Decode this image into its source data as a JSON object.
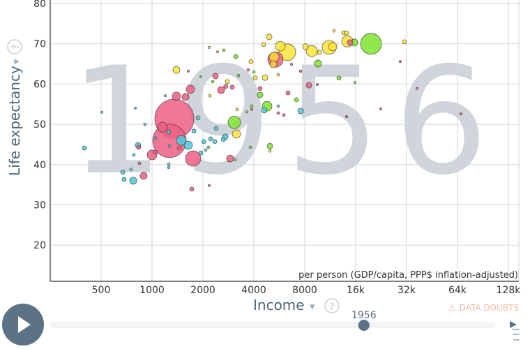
{
  "chart_data": {
    "type": "scatter",
    "year": "1956",
    "xlabel": "Income",
    "xlabel_sub": "per person (GDP/capita, PPP$ inflation-adjusted)",
    "ylabel": "Life expectancy",
    "x_scale": "log2",
    "xlim": [
      250,
      160000
    ],
    "ylim": [
      11,
      80
    ],
    "x_ticks": [
      500,
      1000,
      2000,
      4000,
      8000,
      16000,
      32000,
      64000,
      128000
    ],
    "x_tick_labels": [
      "500",
      "1000",
      "2000",
      "4000",
      "8000",
      "16k",
      "32k",
      "64k",
      "128k"
    ],
    "y_ticks": [
      20,
      30,
      40,
      50,
      60,
      70,
      80
    ],
    "y_tick_labels": [
      "20",
      "30",
      "40",
      "50",
      "60",
      "70",
      "80"
    ],
    "grid": true,
    "bubble_fields": [
      "income",
      "life_expectancy",
      "population_relative",
      "color"
    ],
    "bubbles": [
      [
        1355,
        51.4,
        620,
        "#ef5f84"
      ],
      [
        1268,
        45.9,
        455,
        "#ef5f84"
      ],
      [
        1153,
        49.3,
        39,
        "#ef5f84"
      ],
      [
        1490,
        46.0,
        39,
        "#4cc9dd"
      ],
      [
        1638,
        44.8,
        28,
        "#4cc9dd"
      ],
      [
        1750,
        41.5,
        95,
        "#ef5f84"
      ],
      [
        1000,
        42.4,
        39,
        "#ef5f84"
      ],
      [
        2896,
        41.5,
        20,
        "#ef5f84"
      ],
      [
        3066,
        50.5,
        64,
        "#7fe32f"
      ],
      [
        3155,
        47.6,
        28,
        "#ffe43a"
      ],
      [
        4790,
        54.5,
        39,
        "#7fe32f"
      ],
      [
        4610,
        53.5,
        13,
        "#4cc9dd"
      ],
      [
        7560,
        53.3,
        13,
        "#4cc9dd"
      ],
      [
        2560,
        58.5,
        20,
        "#ef5f84"
      ],
      [
        2374,
        62.0,
        13,
        "#ef5f84"
      ],
      [
        1686,
        58.7,
        28,
        "#ef5f84"
      ],
      [
        1394,
        57.0,
        28,
        "#ef5f84"
      ],
      [
        1578,
        56.8,
        20,
        "#ef5f84"
      ],
      [
        1394,
        63.5,
        20,
        "#ffe43a"
      ],
      [
        5370,
        66.1,
        95,
        "#ef5f84"
      ],
      [
        6310,
        67.9,
        114,
        "#ffe43a"
      ],
      [
        5740,
        69.4,
        39,
        "#ffe43a"
      ],
      [
        5270,
        66.7,
        39,
        "#ffd23a"
      ],
      [
        5220,
        64.9,
        20,
        "#ffd23a"
      ],
      [
        8800,
        68.2,
        51,
        "#ffe43a"
      ],
      [
        11150,
        69.1,
        79,
        "#ffe43a"
      ],
      [
        11700,
        69.3,
        28,
        "#ffe43a"
      ],
      [
        14280,
        70.6,
        51,
        "#ffe43a"
      ],
      [
        15700,
        70.3,
        20,
        "#7fe32f"
      ],
      [
        14830,
        70.3,
        13,
        "#ef5f84"
      ],
      [
        19720,
        70.0,
        178,
        "#7fe32f"
      ],
      [
        8080,
        69.3,
        13,
        "#ffe43a"
      ],
      [
        9770,
        67.9,
        7,
        "#ffe43a"
      ],
      [
        4930,
        71.7,
        13,
        "#ffe43a"
      ],
      [
        4570,
        69.8,
        7,
        "#ffe43a"
      ],
      [
        11920,
        73.2,
        3,
        "#ffe43a"
      ],
      [
        13610,
        72.7,
        7,
        "#ffe43a"
      ],
      [
        14140,
        72.7,
        7,
        "#ffe43a"
      ],
      [
        31100,
        70.5,
        7,
        "#ffe43a"
      ],
      [
        9580,
        65.1,
        20,
        "#7fe32f"
      ],
      [
        12740,
        61.5,
        7,
        "#7fe32f"
      ],
      [
        3125,
        66.8,
        7,
        "#7fe32f"
      ],
      [
        3850,
        65.6,
        7,
        "#ffe43a"
      ],
      [
        4657,
        61.6,
        13,
        "#ffe43a"
      ],
      [
        4076,
        61.5,
        7,
        "#ffe43a"
      ],
      [
        8470,
        59.7,
        13,
        "#ef5f84"
      ],
      [
        6370,
        57.8,
        7,
        "#ef5f84"
      ],
      [
        7140,
        56.1,
        7,
        "#7fe32f"
      ],
      [
        4357,
        57.3,
        13,
        "#7fe32f"
      ],
      [
        4357,
        58.9,
        7,
        "#ef5f84"
      ],
      [
        2788,
        60.6,
        7,
        "#ffe43a"
      ],
      [
        2730,
        59.4,
        7,
        "#ef5f84"
      ],
      [
        2980,
        59.2,
        7,
        "#ef5f84"
      ],
      [
        2395,
        49.0,
        7,
        "#4cc9dd"
      ],
      [
        2710,
        46.9,
        13,
        "#4cc9dd"
      ],
      [
        2640,
        46.2,
        7,
        "#4cc9dd"
      ],
      [
        2350,
        45.7,
        7,
        "#4cc9dd"
      ],
      [
        2220,
        46.4,
        7,
        "#4cc9dd"
      ],
      [
        2020,
        45.7,
        7,
        "#4cc9dd"
      ],
      [
        1871,
        51.6,
        7,
        "#4cc9dd"
      ],
      [
        1768,
        48.3,
        7,
        "#4cc9dd"
      ],
      [
        1944,
        42.9,
        7,
        "#4cc9dd"
      ],
      [
        2077,
        43.6,
        3,
        "#4cc9dd"
      ],
      [
        2159,
        44.3,
        3,
        "#7fe32f"
      ],
      [
        3816,
        44.3,
        3,
        "#7fe32f"
      ],
      [
        4976,
        44.6,
        13,
        "#7fe32f"
      ],
      [
        4976,
        43.4,
        3,
        "#ffe43a"
      ],
      [
        3095,
        41.2,
        3,
        "#7fe32f"
      ],
      [
        892,
        37.2,
        20,
        "#ef5f84"
      ],
      [
        774,
        36.0,
        20,
        "#4cc9dd"
      ],
      [
        684,
        36.3,
        7,
        "#4cc9dd"
      ],
      [
        671,
        38.1,
        7,
        "#4cc9dd"
      ],
      [
        752,
        38.8,
        3,
        "#4cc9dd"
      ],
      [
        827,
        44.8,
        13,
        "#4cc9dd"
      ],
      [
        833,
        44.3,
        7,
        "#ef5f84"
      ],
      [
        781,
        42.4,
        3,
        "#4cc9dd"
      ],
      [
        843,
        40.3,
        3,
        "#ef5f84"
      ],
      [
        1256,
        40.1,
        3,
        "#4cc9dd"
      ],
      [
        1256,
        39.3,
        3,
        "#4cc9dd"
      ],
      [
        398,
        44.1,
        7,
        "#4cc9dd"
      ],
      [
        1718,
        33.9,
        7,
        "#ef5f84"
      ],
      [
        1048,
        46.6,
        3,
        "#4cc9dd"
      ],
      [
        1048,
        43.1,
        7,
        "#ef5f84"
      ],
      [
        1256,
        48.1,
        7,
        "#4cc9dd"
      ],
      [
        1268,
        44.6,
        3,
        "#4cc9dd"
      ],
      [
        1448,
        44.1,
        7,
        "#ef5f84"
      ],
      [
        2285,
        60.6,
        3,
        "#7fe32f"
      ],
      [
        5577,
        54.5,
        3,
        "#4cc9dd"
      ],
      [
        5577,
        52.8,
        3,
        "#ef5f84"
      ],
      [
        6017,
        52.3,
        3,
        "#ef5f84"
      ],
      [
        2178,
        69.1,
        2,
        "#ffe43a"
      ],
      [
        2442,
        68.0,
        2,
        "#ffe43a"
      ],
      [
        2659,
        68.4,
        3,
        "#7fe32f"
      ],
      [
        1638,
        63.2,
        2,
        "#ef5f84"
      ],
      [
        1198,
        57.1,
        2,
        "#4cc9dd"
      ],
      [
        796,
        54.0,
        2,
        "#4cc9dd"
      ],
      [
        505,
        53.0,
        2,
        "#4cc9dd"
      ],
      [
        909,
        50.0,
        3,
        "#4cc9dd"
      ],
      [
        29380,
        65.6,
        2,
        "#ef5f84"
      ],
      [
        22520,
        53.8,
        2,
        "#ef5f84"
      ],
      [
        14140,
        51.9,
        2,
        "#ef5f84"
      ],
      [
        9490,
        59.9,
        2,
        "#ef5f84"
      ],
      [
        15850,
        60.4,
        2,
        "#7fe32f"
      ],
      [
        7560,
        63.2,
        3,
        "#ef5f84"
      ],
      [
        6680,
        64.9,
        2,
        "#ef5f84"
      ],
      [
        5577,
        62.3,
        3,
        "#ffe43a"
      ],
      [
        3707,
        63.5,
        3,
        "#ef5f84"
      ],
      [
        4000,
        63.0,
        3,
        "#7fe32f"
      ],
      [
        3247,
        62.1,
        3,
        "#7fe32f"
      ],
      [
        1944,
        61.8,
        2,
        "#7fe32f"
      ],
      [
        2199,
        57.1,
        3,
        "#ffe43a"
      ],
      [
        3185,
        53.7,
        3,
        "#ffe43a"
      ],
      [
        3888,
        53.7,
        2,
        "#ef5f84"
      ],
      [
        3888,
        54.5,
        3,
        "#7fe32f"
      ],
      [
        3637,
        53.1,
        2,
        "#7fe32f"
      ],
      [
        36900,
        58.9,
        2,
        "#ef5f84"
      ],
      [
        67100,
        52.6,
        2,
        "#ef5f84"
      ],
      [
        2178,
        34.8,
        2,
        "#ef5f84"
      ]
    ]
  },
  "controls": {
    "income_label": "Income",
    "life_label": "Life expectancy",
    "data_doubts": "DATA DOUBTS",
    "warning_icon": "⚠",
    "help_icon": "?",
    "dropdown_icon": "▾",
    "play_icon": "play-icon",
    "slider_year": "1956",
    "slider_progress_fraction": 0.705,
    "accent_color": "#5c7285",
    "doubts_color": "#f5b8a2"
  }
}
